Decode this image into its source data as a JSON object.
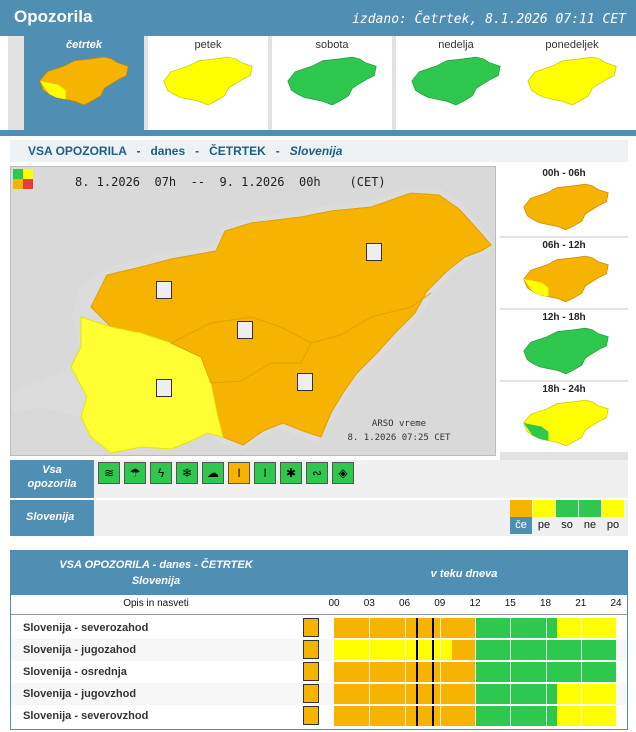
{
  "header": {
    "title": "Opozorila",
    "issued": "izdano: Četrtek, 8.1.2026 07:11 CET"
  },
  "days": [
    {
      "name": "četrtek",
      "active": true
    },
    {
      "name": "petek",
      "active": false
    },
    {
      "name": "sobota",
      "active": false
    },
    {
      "name": "nedelja",
      "active": false
    },
    {
      "name": "ponedeljek",
      "active": false
    }
  ],
  "subtitle": {
    "prefix": "VSA OPOZORILA   -   danes   -   ČETRTEK   -   ",
    "region": "Slovenija"
  },
  "map": {
    "period": "8. 1.2026  07h  --  9. 1.2026  00h    (CET)",
    "credit_line1": "ARSO vreme",
    "credit_line2": "8. 1.2026  07:25 CET"
  },
  "time_slots": [
    {
      "label": "00h - 06h"
    },
    {
      "label": "06h - 12h"
    },
    {
      "label": "12h - 18h"
    },
    {
      "label": "18h - 24h"
    }
  ],
  "category": {
    "label_line1": "Vsa",
    "label_line2": "opozorila"
  },
  "region_row": {
    "label": "Slovenija"
  },
  "levels": [
    {
      "code": "če",
      "color": "#f6b400",
      "active": true
    },
    {
      "code": "pe",
      "color": "#ffff00",
      "active": false
    },
    {
      "code": "so",
      "color": "#2fc84e",
      "active": false
    },
    {
      "code": "ne",
      "color": "#2fc84e",
      "active": false
    },
    {
      "code": "po",
      "color": "#ffff00",
      "active": false
    }
  ],
  "table": {
    "title_line1": "VSA OPOZORILA - danes - ČETRTEK",
    "title_line2": "Slovenija",
    "timeline_header": "v teku dneva",
    "desc_header": "Opis in nasveti",
    "hours": [
      "00",
      "03",
      "06",
      "09",
      "12",
      "15",
      "18",
      "21",
      "24"
    ],
    "rows": [
      {
        "name": "Slovenija - severozahod",
        "segments": [
          [
            "#f6b400",
            0,
            12
          ],
          [
            "#2fc84e",
            12,
            19
          ],
          [
            "#ffff00",
            19,
            24
          ]
        ]
      },
      {
        "name": "Slovenija - jugozahod",
        "segments": [
          [
            "#ffff00",
            0,
            10
          ],
          [
            "#f6b400",
            10,
            12
          ],
          [
            "#2fc84e",
            12,
            24
          ]
        ]
      },
      {
        "name": "Slovenija - osrednja",
        "segments": [
          [
            "#f6b400",
            0,
            12
          ],
          [
            "#2fc84e",
            12,
            24
          ]
        ]
      },
      {
        "name": "Slovenija - jugovzhod",
        "segments": [
          [
            "#f6b400",
            0,
            12
          ],
          [
            "#2fc84e",
            12,
            19
          ],
          [
            "#ffff00",
            19,
            24
          ]
        ]
      },
      {
        "name": "Slovenija - severovzhod",
        "segments": [
          [
            "#f6b400",
            0,
            12
          ],
          [
            "#2fc84e",
            12,
            19
          ],
          [
            "#ffff00",
            19,
            24
          ]
        ]
      }
    ]
  },
  "colors": {
    "orange": "#f6b400",
    "yellow": "#ffff00",
    "green": "#2fc84e",
    "red": "#e63c3c",
    "accent": "#4f8fb3"
  }
}
